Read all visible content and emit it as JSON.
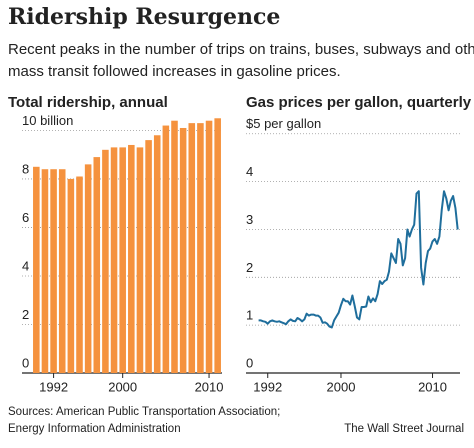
{
  "title": "Ridership Resurgence",
  "subtitle": [
    "Recent peaks in the number of trips on trains, buses, subways and other",
    "mass transit followed increases in gasoline prices."
  ],
  "chart_data": [
    {
      "type": "bar",
      "title": "Total ridership, annual",
      "color": "#f5923e",
      "categories": [
        null,
        null,
        "1992",
        null,
        null,
        null,
        null,
        null,
        null,
        null,
        "2000",
        null,
        null,
        null,
        null,
        null,
        null,
        null,
        null,
        null,
        "2010",
        null
      ],
      "values": [
        8.5,
        8.4,
        8.4,
        8.4,
        8.0,
        8.1,
        8.6,
        8.9,
        9.2,
        9.3,
        9.3,
        9.4,
        9.3,
        9.6,
        9.8,
        10.2,
        10.4,
        10.1,
        10.3,
        10.3,
        10.4,
        10.5
      ],
      "ylim": [
        0,
        10.8
      ],
      "yticks": [
        0,
        2,
        4,
        6,
        8,
        {
          "value": 10,
          "label": "10 billion"
        }
      ],
      "grid": true
    },
    {
      "type": "line",
      "title": "Gas prices per gallon, quarterly",
      "color": "#1f6e9c",
      "x": [
        1991,
        1991.25,
        1991.5,
        1991.75,
        1992,
        1992.25,
        1992.5,
        1992.75,
        1993,
        1993.25,
        1993.5,
        1993.75,
        1994,
        1994.25,
        1994.5,
        1994.75,
        1995,
        1995.25,
        1995.5,
        1995.75,
        1996,
        1996.25,
        1996.5,
        1996.75,
        1997,
        1997.25,
        1997.5,
        1997.75,
        1998,
        1998.25,
        1998.5,
        1998.75,
        1999,
        1999.25,
        1999.5,
        1999.75,
        2000,
        2000.25,
        2000.5,
        2000.75,
        2001,
        2001.25,
        2001.5,
        2001.75,
        2002,
        2002.25,
        2002.5,
        2002.75,
        2003,
        2003.25,
        2003.5,
        2003.75,
        2004,
        2004.25,
        2004.5,
        2004.75,
        2005,
        2005.25,
        2005.5,
        2005.75,
        2006,
        2006.25,
        2006.5,
        2006.75,
        2007,
        2007.25,
        2007.5,
        2007.75,
        2008,
        2008.25,
        2008.5,
        2008.75,
        2009,
        2009.25,
        2009.5,
        2009.75,
        2010,
        2010.25,
        2010.5,
        2010.75,
        2011,
        2011.25,
        2011.5,
        2011.75,
        2012,
        2012.25,
        2012.5,
        2012.75
      ],
      "values": [
        1.1,
        1.1,
        1.08,
        1.07,
        1.03,
        1.08,
        1.1,
        1.08,
        1.07,
        1.08,
        1.06,
        1.04,
        1.02,
        1.08,
        1.12,
        1.09,
        1.08,
        1.15,
        1.12,
        1.08,
        1.12,
        1.24,
        1.2,
        1.22,
        1.22,
        1.2,
        1.2,
        1.16,
        1.05,
        1.06,
        1.03,
        0.97,
        0.95,
        1.1,
        1.18,
        1.26,
        1.42,
        1.55,
        1.5,
        1.5,
        1.43,
        1.62,
        1.4,
        1.16,
        1.12,
        1.38,
        1.38,
        1.39,
        1.6,
        1.48,
        1.56,
        1.5,
        1.65,
        1.92,
        1.86,
        1.92,
        1.95,
        2.12,
        2.5,
        2.4,
        2.3,
        2.8,
        2.7,
        2.25,
        2.4,
        3.0,
        2.85,
        3.0,
        3.1,
        3.75,
        3.8,
        2.2,
        1.85,
        2.3,
        2.55,
        2.6,
        2.75,
        2.8,
        2.7,
        2.85,
        3.4,
        3.8,
        3.65,
        3.4,
        3.6,
        3.7,
        3.45,
        3.0
      ],
      "xlim": [
        1990.5,
        2013
      ],
      "xticks": [
        1992,
        2000,
        2010
      ],
      "ylim": [
        0,
        5.1
      ],
      "yticks": [
        0,
        1,
        2,
        3,
        4,
        {
          "value": 5,
          "label": "$5 per gallon"
        }
      ],
      "grid": true
    }
  ],
  "source": [
    "Sources: American Public Transportation Association;",
    "Energy Information Administration"
  ],
  "credit": "The Wall Street Journal"
}
